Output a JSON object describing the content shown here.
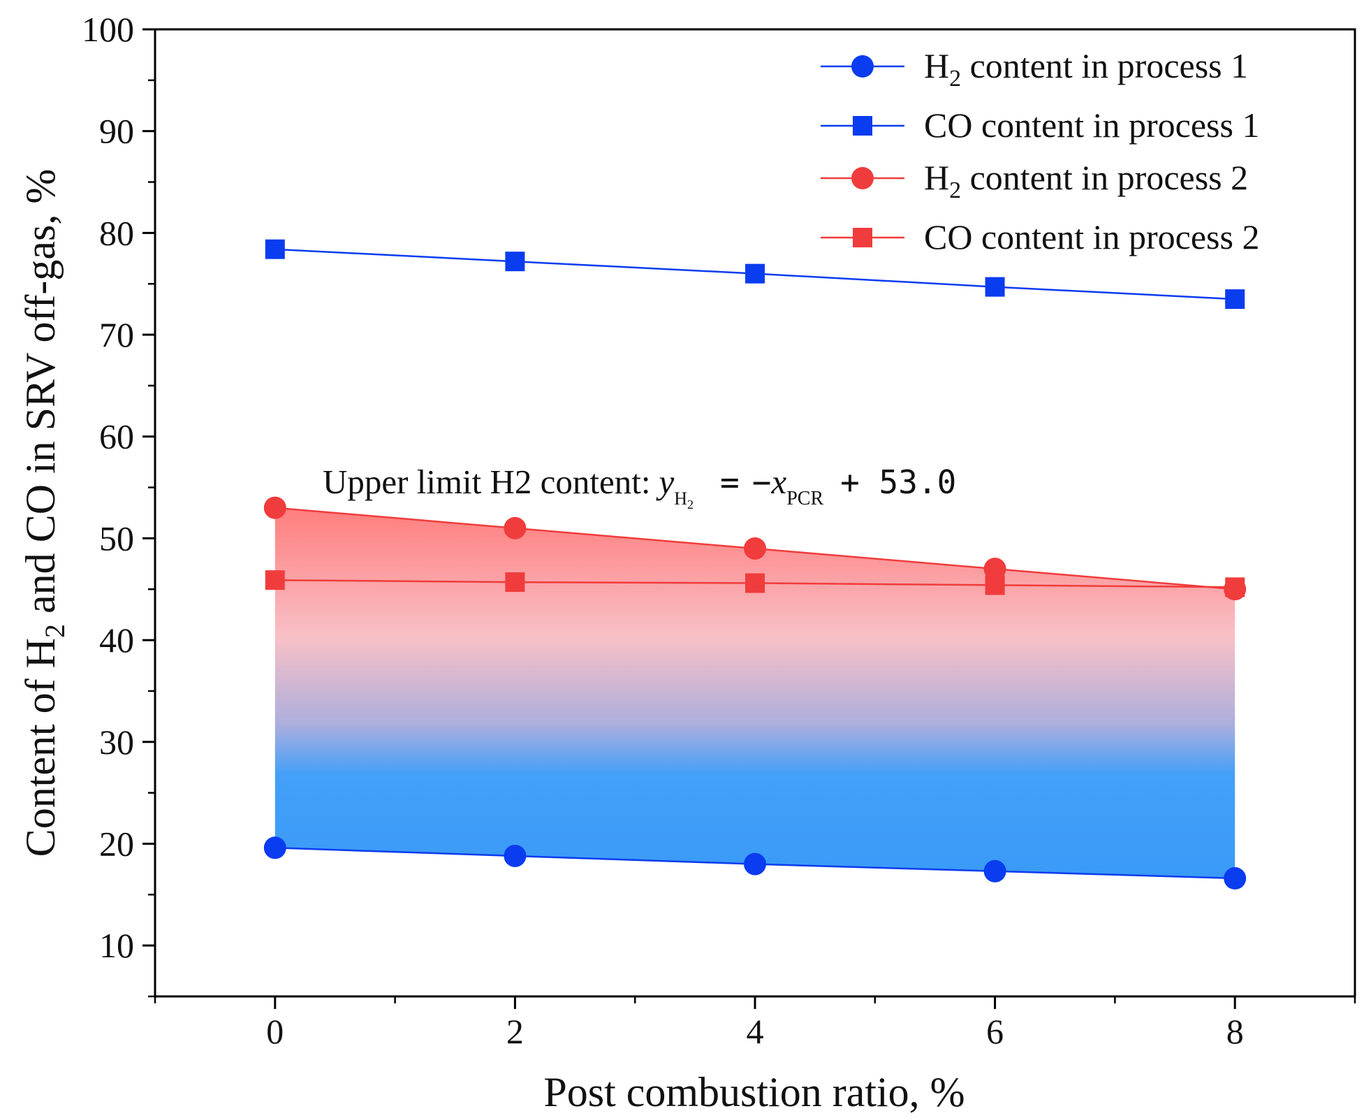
{
  "chart_data": {
    "type": "line",
    "x": [
      0,
      2,
      4,
      6,
      8
    ],
    "series": [
      {
        "name": "H2 content in process 1",
        "name_main": "H",
        "name_sub": "2",
        "name_rest": " content in process 1",
        "color": "#0a3cf0",
        "marker": "circle",
        "values": [
          19.6,
          18.8,
          18.0,
          17.3,
          16.6
        ]
      },
      {
        "name": "CO content in process 1",
        "name_main": "CO content in process 1",
        "name_sub": "",
        "name_rest": "",
        "color": "#0a3cf0",
        "marker": "square",
        "values": [
          78.4,
          77.2,
          76.0,
          74.7,
          73.5
        ]
      },
      {
        "name": "H2 content in process 2",
        "name_main": "H",
        "name_sub": "2",
        "name_rest": " content in process 2",
        "color": "#f03c3c",
        "marker": "circle",
        "values": [
          53.0,
          51.0,
          49.0,
          47.0,
          45.0
        ]
      },
      {
        "name": "CO content in process 2",
        "name_main": "CO content in process 2",
        "name_sub": "",
        "name_rest": "",
        "color": "#f03c3c",
        "marker": "square",
        "values": [
          45.9,
          45.7,
          45.6,
          45.4,
          45.2
        ]
      }
    ],
    "xlabel": "Post combustion ratio, %",
    "ylabel": {
      "prefix": "Content of H",
      "sub": "2",
      "suffix": " and CO in SRV off-gas, %"
    },
    "xlim": [
      -1,
      9
    ],
    "ylim": [
      5,
      100
    ],
    "xticks": [
      0,
      2,
      4,
      6,
      8
    ],
    "yticks": [
      10,
      20,
      30,
      40,
      50,
      60,
      70,
      80,
      90,
      100
    ],
    "x_minor_step": 1,
    "y_minor_step": 5,
    "grid": false,
    "legend": "top-right",
    "annotation": {
      "prefix": "Upper limit H",
      "prefix_sub": "2",
      "prefix_rest": " content:",
      "y_var": "y",
      "y_sub": "H",
      "y_subsub": "2",
      "equals": "=",
      "minus": "−",
      "x_var": "x",
      "x_sub": "PCR",
      "constant": "+ 53.0"
    },
    "shaded_region": {
      "between": [
        "H2 content in process 1",
        "H2 content in process 2"
      ],
      "top_color": "#ff6f6f",
      "mid_color": "#f7b9c0",
      "blend_color": "#a6a6d9",
      "bottom_color": "#2f95f7"
    }
  }
}
